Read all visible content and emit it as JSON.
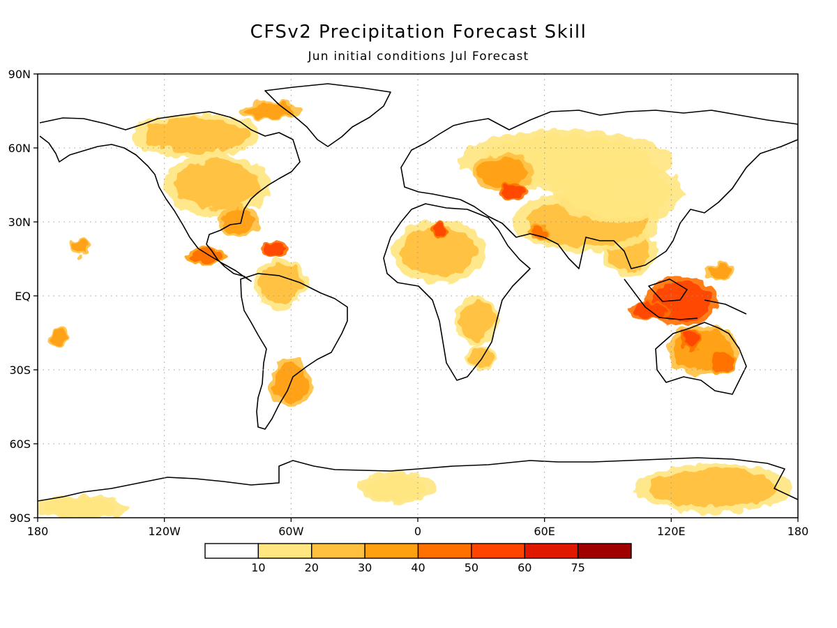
{
  "title": "CFSv2 Precipitation Forecast Skill",
  "subtitle": "Jun initial conditions   Jul Forecast",
  "map": {
    "projection": "equirectangular",
    "lon_range": [
      -180,
      180
    ],
    "lat_range": [
      -90,
      90
    ],
    "grid": true,
    "coastlines": true
  },
  "x_ticks": [
    {
      "value": -180,
      "label": "180"
    },
    {
      "value": -120,
      "label": "120W"
    },
    {
      "value": -60,
      "label": "60W"
    },
    {
      "value": 0,
      "label": "0"
    },
    {
      "value": 60,
      "label": "60E"
    },
    {
      "value": 120,
      "label": "120E"
    },
    {
      "value": 180,
      "label": "180"
    }
  ],
  "y_ticks": [
    {
      "value": 90,
      "label": "90N"
    },
    {
      "value": 60,
      "label": "60N"
    },
    {
      "value": 30,
      "label": "30N"
    },
    {
      "value": 0,
      "label": "EQ"
    },
    {
      "value": -30,
      "label": "30S"
    },
    {
      "value": -60,
      "label": "60S"
    },
    {
      "value": -90,
      "label": "90S"
    }
  ],
  "colorbar": {
    "levels": [
      "10",
      "20",
      "30",
      "40",
      "50",
      "60",
      "75"
    ],
    "colors": [
      "#ffffff",
      "#ffe680",
      "#ffc040",
      "#ffa010",
      "#ff7000",
      "#ff4400",
      "#e01800",
      "#a00000"
    ]
  },
  "skill_regions": [
    {
      "lon": 125,
      "lat": -2,
      "rlon": 14,
      "rlat": 8,
      "level": 5
    },
    {
      "lon": 110,
      "lat": -6,
      "rlon": 8,
      "rlat": 3,
      "level": 5
    },
    {
      "lon": 135,
      "lat": -22,
      "rlon": 14,
      "rlat": 8,
      "level": 3
    },
    {
      "lon": 130,
      "lat": -18,
      "rlon": 4,
      "rlat": 3,
      "level": 5
    },
    {
      "lon": 145,
      "lat": -27,
      "rlon": 5,
      "rlat": 4,
      "level": 4
    },
    {
      "lon": 100,
      "lat": 18,
      "rlon": 10,
      "rlat": 8,
      "level": 2
    },
    {
      "lon": 80,
      "lat": 30,
      "rlon": 28,
      "rlat": 10,
      "level": 2
    },
    {
      "lon": 95,
      "lat": 42,
      "rlon": 25,
      "rlat": 10,
      "level": 1
    },
    {
      "lon": 70,
      "lat": 55,
      "rlon": 40,
      "rlat": 10,
      "level": 1
    },
    {
      "lon": 40,
      "lat": 50,
      "rlon": 12,
      "rlat": 6,
      "level": 3
    },
    {
      "lon": 45,
      "lat": 42,
      "rlon": 5,
      "rlat": 3,
      "level": 5
    },
    {
      "lon": 10,
      "lat": 18,
      "rlon": 18,
      "rlat": 10,
      "level": 2
    },
    {
      "lon": 10,
      "lat": 27,
      "rlon": 3,
      "rlat": 3,
      "level": 5
    },
    {
      "lon": 28,
      "lat": -10,
      "rlon": 8,
      "rlat": 8,
      "level": 2
    },
    {
      "lon": 30,
      "lat": -25,
      "rlon": 6,
      "rlat": 4,
      "level": 2
    },
    {
      "lon": -95,
      "lat": 45,
      "rlon": 20,
      "rlat": 10,
      "level": 2
    },
    {
      "lon": -105,
      "lat": 65,
      "rlon": 25,
      "rlat": 7,
      "level": 2
    },
    {
      "lon": -70,
      "lat": 75,
      "rlon": 12,
      "rlat": 3,
      "level": 3
    },
    {
      "lon": -85,
      "lat": 30,
      "rlon": 8,
      "rlat": 5,
      "level": 3
    },
    {
      "lon": -100,
      "lat": 16,
      "rlon": 8,
      "rlat": 3,
      "level": 4
    },
    {
      "lon": -68,
      "lat": 19,
      "rlon": 5,
      "rlat": 3,
      "level": 5
    },
    {
      "lon": -65,
      "lat": 5,
      "rlon": 10,
      "rlat": 8,
      "level": 2
    },
    {
      "lon": -60,
      "lat": -35,
      "rlon": 8,
      "rlat": 8,
      "level": 3
    },
    {
      "lon": -160,
      "lat": 20,
      "rlon": 4,
      "rlat": 3,
      "level": 3
    },
    {
      "lon": -170,
      "lat": -17,
      "rlon": 4,
      "rlat": 3,
      "level": 3
    },
    {
      "lon": -10,
      "lat": -78,
      "rlon": 15,
      "rlat": 5,
      "level": 1
    },
    {
      "lon": 140,
      "lat": -78,
      "rlon": 30,
      "rlat": 8,
      "level": 2
    },
    {
      "lon": -160,
      "lat": -86,
      "rlon": 18,
      "rlat": 4,
      "level": 1
    },
    {
      "lon": 57,
      "lat": 26,
      "rlon": 4,
      "rlat": 3,
      "level": 4
    },
    {
      "lon": 143,
      "lat": 10,
      "rlon": 6,
      "rlat": 3,
      "level": 3
    }
  ]
}
